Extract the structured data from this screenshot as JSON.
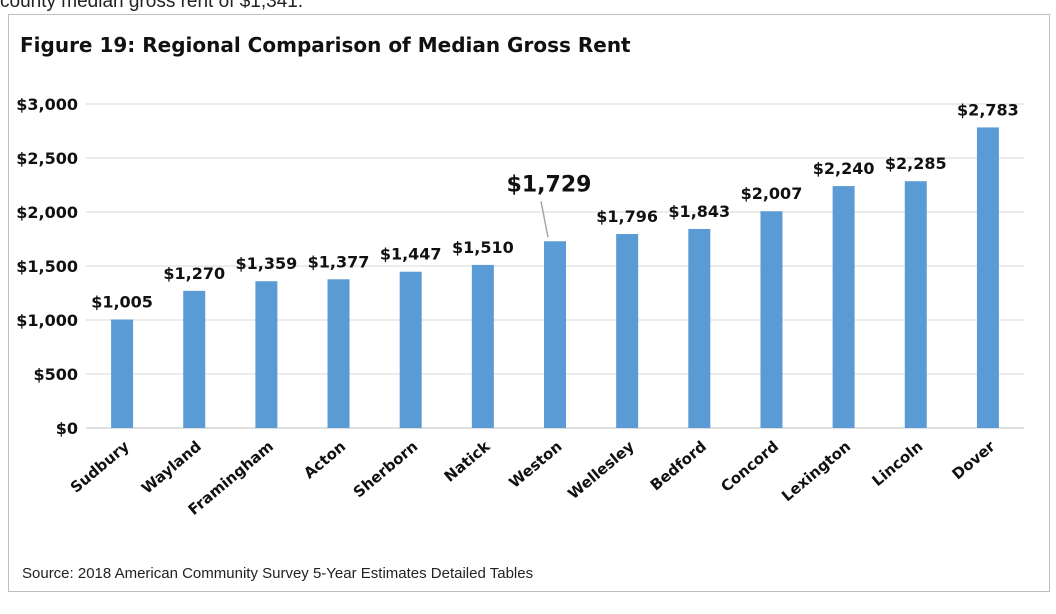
{
  "context_text": "county median gross rent of $1,341.",
  "chart_title": "Figure 19: Regional Comparison of Median Gross Rent",
  "source": "Source: 2018 American Community Survey 5-Year Estimates Detailed Tables",
  "colors": {
    "bar": "#5b9bd5",
    "grid": "#d9d9d9"
  },
  "chart_data": {
    "type": "bar",
    "title": "Figure 19: Regional Comparison of Median Gross Rent",
    "xlabel": "",
    "ylabel": "",
    "categories": [
      "Sudbury",
      "Wayland",
      "Framingham",
      "Acton",
      "Sherborn",
      "Natick",
      "Weston",
      "Wellesley",
      "Bedford",
      "Concord",
      "Lexington",
      "Lincoln",
      "Dover"
    ],
    "values": [
      1005,
      1270,
      1359,
      1377,
      1447,
      1510,
      1729,
      1796,
      1843,
      2007,
      2240,
      2285,
      2783
    ],
    "data_labels": [
      "$1,005",
      "$1,270",
      "$1,359",
      "$1,377",
      "$1,447",
      "$1,510",
      "$1,729",
      "$1,796",
      "$1,843",
      "$2,007",
      "$2,240",
      "$2,285",
      "$2,783"
    ],
    "highlighted_category": "Weston",
    "ylim": [
      0,
      3000
    ],
    "yticks": [
      0,
      500,
      1000,
      1500,
      2000,
      2500,
      3000
    ],
    "ytick_labels": [
      "$0",
      "$500",
      "$1,000",
      "$1,500",
      "$2,000",
      "$2,500",
      "$3,000"
    ],
    "grid": true,
    "legend": false
  }
}
